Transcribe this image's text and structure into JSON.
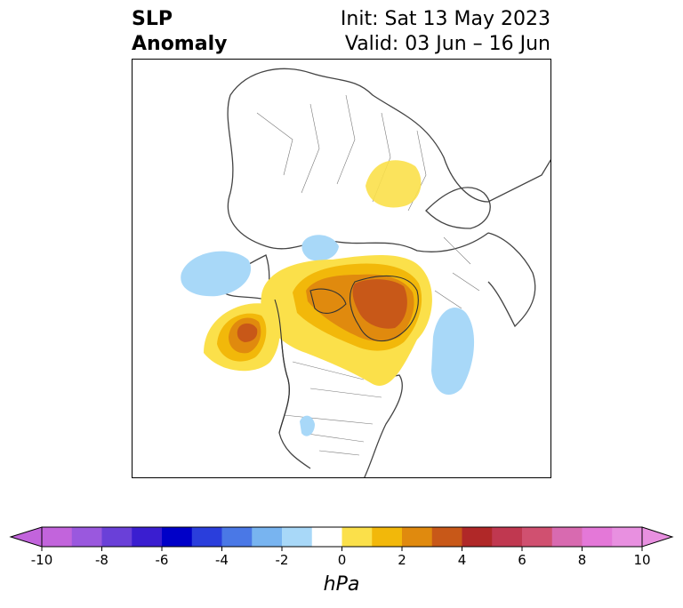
{
  "header": {
    "title_line1": "SLP",
    "title_line2": "Anomaly",
    "init_text": "Init: Sat 13 May 2023",
    "valid_text": "Valid: 03 Jun – 16 Jun"
  },
  "colorbar": {
    "units": "hPa",
    "tick_labels": [
      "-10",
      "-8",
      "-6",
      "-4",
      "-2",
      "0",
      "2",
      "4",
      "6",
      "8",
      "10"
    ],
    "levels": [
      -10,
      -9,
      -8,
      -7,
      -6,
      -5,
      -4,
      -3,
      -2,
      -1,
      1,
      2,
      3,
      4,
      5,
      6,
      7,
      8,
      9,
      10
    ],
    "colors": [
      "#c264dc",
      "#9a58de",
      "#6a40d8",
      "#3a1ed0",
      "#0000c8",
      "#2a3edc",
      "#4a78e6",
      "#78b4f0",
      "#a8d8f8",
      "#ffffff",
      "#fbe04a",
      "#f2b80a",
      "#e08a0e",
      "#c85818",
      "#b02828",
      "#c03850",
      "#d05070",
      "#d86ab0",
      "#e478d8",
      "#e890e0"
    ],
    "extend": "both"
  },
  "map": {
    "projection": "north-polar-stereographic",
    "anomalies": [
      {
        "region": "Eastern Europe / Western Russia",
        "sign": "positive",
        "max_hPa": 1.5
      },
      {
        "region": "Northeast Pacific / off British Columbia",
        "sign": "positive",
        "max_hPa": 4.5
      },
      {
        "region": "Greenland / Canadian Arctic Archipelago",
        "sign": "positive",
        "max_hPa": 4.5
      },
      {
        "region": "Central Canada / Hudson Bay",
        "sign": "positive",
        "max_hPa": 2.5
      },
      {
        "region": "Central North Pacific",
        "sign": "negative",
        "min_hPa": -1.5
      },
      {
        "region": "Arctic Ocean / East Siberian Sea",
        "sign": "negative",
        "min_hPa": -1.5
      },
      {
        "region": "North Atlantic",
        "sign": "negative",
        "min_hPa": -1.5
      },
      {
        "region": "Southwestern United States",
        "sign": "negative",
        "min_hPa": -1.5
      }
    ]
  }
}
